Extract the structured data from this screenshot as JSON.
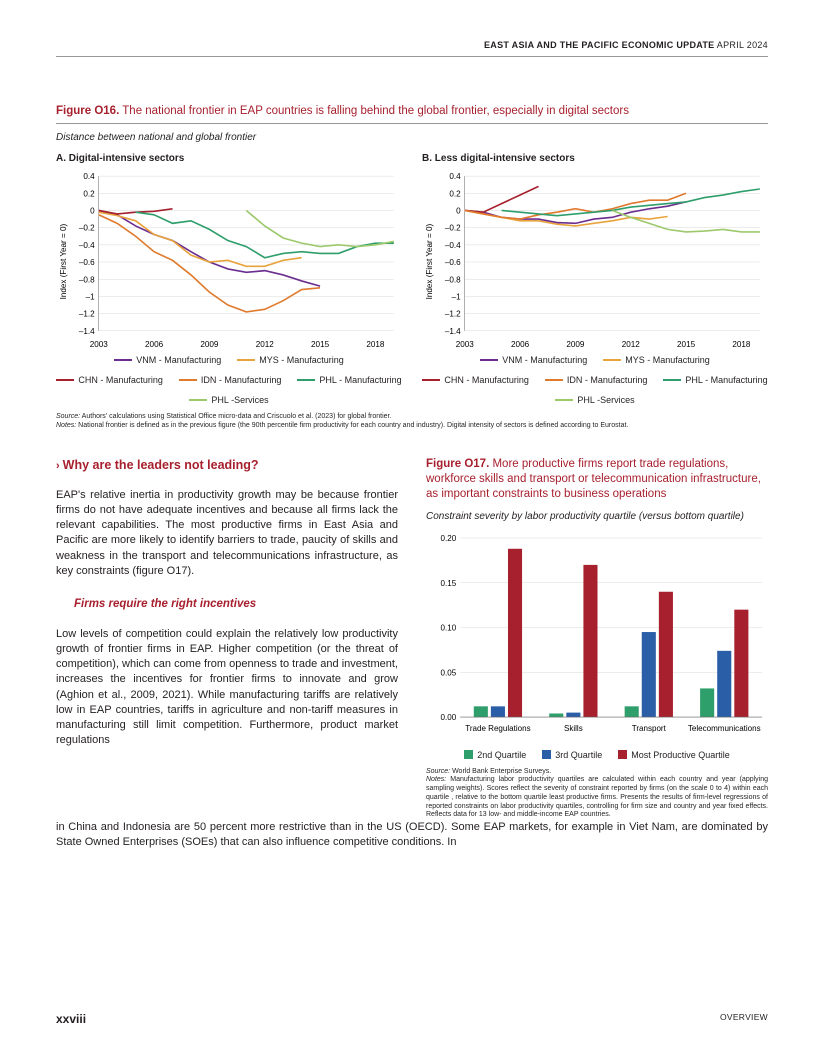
{
  "header": {
    "bold": "EAST ASIA AND THE PACIFIC ECONOMIC UPDATE",
    "light": " APRIL 2024"
  },
  "fig16": {
    "num": "Figure O16.",
    "title": " The national frontier in EAP countries is falling behind the global frontier, especially in digital sectors",
    "subtitle": "Distance between national and global frontier",
    "panelA_label": "A. Digital-intensive sectors",
    "panelB_label": "B. Less digital-intensive sectors",
    "ylabel": "Index (First Year = 0)",
    "yticks": [
      0.4,
      0.2,
      0,
      -0.2,
      -0.4,
      -0.6,
      -0.8,
      -1,
      -1.2,
      -1.4
    ],
    "xticks": [
      2003,
      2006,
      2009,
      2012,
      2015,
      2018
    ],
    "xlim": [
      2003,
      2019
    ],
    "ylim": [
      -1.4,
      0.4
    ],
    "colors": {
      "VNM": "#6b2e8f",
      "MYS": "#e8a33d",
      "CHN": "#a7202e",
      "IDN": "#e07b2e",
      "PHL_M": "#2e9e6b",
      "PHL_S": "#9cc96b"
    },
    "panelA_series": {
      "VNM": [
        [
          2003,
          0
        ],
        [
          2004,
          -0.05
        ],
        [
          2005,
          -0.18
        ],
        [
          2006,
          -0.28
        ],
        [
          2007,
          -0.35
        ],
        [
          2008,
          -0.48
        ],
        [
          2009,
          -0.6
        ],
        [
          2010,
          -0.68
        ],
        [
          2011,
          -0.72
        ],
        [
          2012,
          -0.7
        ],
        [
          2013,
          -0.75
        ],
        [
          2014,
          -0.82
        ],
        [
          2015,
          -0.88
        ]
      ],
      "MYS": [
        [
          2003,
          -0.02
        ],
        [
          2004,
          -0.06
        ],
        [
          2005,
          -0.12
        ],
        [
          2006,
          -0.28
        ],
        [
          2007,
          -0.35
        ],
        [
          2008,
          -0.52
        ],
        [
          2009,
          -0.6
        ],
        [
          2010,
          -0.58
        ],
        [
          2011,
          -0.65
        ],
        [
          2012,
          -0.65
        ],
        [
          2013,
          -0.58
        ],
        [
          2014,
          -0.55
        ]
      ],
      "CHN": [
        [
          2003,
          0
        ],
        [
          2004,
          -0.04
        ],
        [
          2005,
          -0.02
        ],
        [
          2006,
          -0.01
        ],
        [
          2007,
          0.02
        ]
      ],
      "IDN": [
        [
          2003,
          -0.05
        ],
        [
          2004,
          -0.15
        ],
        [
          2005,
          -0.3
        ],
        [
          2006,
          -0.48
        ],
        [
          2007,
          -0.58
        ],
        [
          2008,
          -0.75
        ],
        [
          2009,
          -0.95
        ],
        [
          2010,
          -1.1
        ],
        [
          2011,
          -1.18
        ],
        [
          2012,
          -1.15
        ],
        [
          2013,
          -1.05
        ],
        [
          2014,
          -0.92
        ],
        [
          2015,
          -0.9
        ]
      ],
      "PHL_M": [
        [
          2005,
          -0.02
        ],
        [
          2006,
          -0.05
        ],
        [
          2007,
          -0.15
        ],
        [
          2008,
          -0.12
        ],
        [
          2009,
          -0.22
        ],
        [
          2010,
          -0.35
        ],
        [
          2011,
          -0.42
        ],
        [
          2012,
          -0.55
        ],
        [
          2013,
          -0.5
        ],
        [
          2014,
          -0.48
        ],
        [
          2015,
          -0.5
        ],
        [
          2016,
          -0.5
        ],
        [
          2017,
          -0.42
        ],
        [
          2018,
          -0.38
        ],
        [
          2019,
          -0.38
        ]
      ],
      "PHL_S": [
        [
          2011,
          0
        ],
        [
          2012,
          -0.18
        ],
        [
          2013,
          -0.32
        ],
        [
          2014,
          -0.38
        ],
        [
          2015,
          -0.42
        ],
        [
          2016,
          -0.4
        ],
        [
          2017,
          -0.42
        ],
        [
          2018,
          -0.4
        ],
        [
          2019,
          -0.36
        ]
      ]
    },
    "panelB_series": {
      "VNM": [
        [
          2003,
          0
        ],
        [
          2004,
          -0.02
        ],
        [
          2005,
          -0.08
        ],
        [
          2006,
          -0.1
        ],
        [
          2007,
          -0.1
        ],
        [
          2008,
          -0.14
        ],
        [
          2009,
          -0.15
        ],
        [
          2010,
          -0.1
        ],
        [
          2011,
          -0.08
        ],
        [
          2012,
          -0.02
        ],
        [
          2013,
          0.02
        ],
        [
          2014,
          0.05
        ],
        [
          2015,
          0.1
        ]
      ],
      "MYS": [
        [
          2003,
          0
        ],
        [
          2004,
          -0.04
        ],
        [
          2005,
          -0.08
        ],
        [
          2006,
          -0.12
        ],
        [
          2007,
          -0.12
        ],
        [
          2008,
          -0.16
        ],
        [
          2009,
          -0.18
        ],
        [
          2010,
          -0.15
        ],
        [
          2011,
          -0.12
        ],
        [
          2012,
          -0.08
        ],
        [
          2013,
          -0.1
        ],
        [
          2014,
          -0.07
        ]
      ],
      "CHN": [
        [
          2003,
          0
        ],
        [
          2004,
          -0.02
        ],
        [
          2005,
          0.08
        ],
        [
          2006,
          0.18
        ],
        [
          2007,
          0.28
        ]
      ],
      "IDN": [
        [
          2003,
          0
        ],
        [
          2004,
          -0.04
        ],
        [
          2005,
          -0.08
        ],
        [
          2006,
          -0.1
        ],
        [
          2007,
          -0.05
        ],
        [
          2008,
          -0.02
        ],
        [
          2009,
          0.02
        ],
        [
          2010,
          -0.02
        ],
        [
          2011,
          0.02
        ],
        [
          2012,
          0.08
        ],
        [
          2013,
          0.12
        ],
        [
          2014,
          0.12
        ],
        [
          2015,
          0.2
        ]
      ],
      "PHL_M": [
        [
          2005,
          0
        ],
        [
          2006,
          -0.02
        ],
        [
          2007,
          -0.04
        ],
        [
          2008,
          -0.06
        ],
        [
          2009,
          -0.04
        ],
        [
          2010,
          -0.02
        ],
        [
          2011,
          0
        ],
        [
          2012,
          0.04
        ],
        [
          2013,
          0.06
        ],
        [
          2014,
          0.08
        ],
        [
          2015,
          0.1
        ],
        [
          2016,
          0.15
        ],
        [
          2017,
          0.18
        ],
        [
          2018,
          0.22
        ],
        [
          2019,
          0.25
        ]
      ],
      "PHL_S": [
        [
          2011,
          0
        ],
        [
          2012,
          -0.08
        ],
        [
          2013,
          -0.15
        ],
        [
          2014,
          -0.22
        ],
        [
          2015,
          -0.25
        ],
        [
          2016,
          -0.24
        ],
        [
          2017,
          -0.22
        ],
        [
          2018,
          -0.25
        ],
        [
          2019,
          -0.25
        ]
      ]
    },
    "legend": [
      {
        "k": "VNM",
        "t": "VNM - Manufacturing"
      },
      {
        "k": "MYS",
        "t": "MYS - Manufacturing"
      },
      {
        "k": "CHN",
        "t": "CHN - Manufacturing"
      },
      {
        "k": "IDN",
        "t": "IDN - Manufacturing"
      },
      {
        "k": "PHL_M",
        "t": "PHL - Manufacturing"
      },
      {
        "k": "PHL_S",
        "t": "PHL -Services"
      }
    ],
    "source_label": "Source:",
    "source": " Authors' calculations using Statistical Office micro-data and Criscuolo et al. (2023) for global frontier.",
    "notes_label": "Notes:",
    "notes": " National frontier is defined as in the previous figure (the 90th percentile firm productivity for each country and industry). Digital intensity of sectors is defined according to Eurostat."
  },
  "section": {
    "head": "Why are the leaders not leading?",
    "p1": "EAP's relative inertia in productivity growth may be because frontier firms do not have adequate incentives and because all firms lack the relevant capabilities. The most productive firms in East Asia and Pacific are more likely to identify barriers to trade, paucity of skills and weakness in the transport and telecommunications infrastructure, as key constraints (figure O17).",
    "sub": "Firms require the right incentives",
    "p2": "Low levels of competition could explain the relatively low productivity growth of frontier firms in EAP. Higher competition (or the threat of competition), which can come from openness to trade and investment, increases the incentives for frontier firms to innovate and grow (Aghion et al., 2009, 2021). While manufacturing tariffs are relatively low in EAP countries, tariffs in agriculture and non-tariff measures in manufacturing still limit competition. Furthermore, product market regulations",
    "p3": "in China and Indonesia are 50 percent more restrictive than in the US (OECD). Some EAP markets, for example in Viet Nam, are dominated by State Owned Enterprises (SOEs) that can also influence competitive conditions. In"
  },
  "fig17": {
    "num": "Figure O17.",
    "title": " More productive firms report trade regulations, workforce skills and transport or telecommunication infrastructure, as important constraints to business operations",
    "subtitle": "Constraint severity by labor productivity quartile (versus bottom quartile)",
    "categories": [
      "Trade Regulations",
      "Skills",
      "Transport",
      "Telecommunications"
    ],
    "series": [
      {
        "name": "2nd Quartile",
        "color": "#2e9e6b",
        "vals": [
          0.012,
          0.004,
          0.012,
          0.032
        ]
      },
      {
        "name": "3rd Quartile",
        "color": "#2a5fa8",
        "vals": [
          0.012,
          0.005,
          0.095,
          0.074
        ]
      },
      {
        "name": "Most Productive Quartile",
        "color": "#a7202e",
        "vals": [
          0.188,
          0.17,
          0.14,
          0.12
        ]
      }
    ],
    "yticks": [
      0.0,
      0.05,
      0.1,
      0.15,
      0.2
    ],
    "ylim": [
      0,
      0.2
    ],
    "source_label": "Source:",
    "source": " World Bank Enterprise Surveys.",
    "notes_label": "Notes:",
    "notes": " Manufacturing labor productivity quartiles are calculated within each country and year (applying sampling weights). Scores reflect the severity of constraint reported by firms (on the scale 0 to 4) within each quartile , relative to the bottom quartile least productive firms. Presents the results of firm-level regressions of reported constraints on labor productivity quartiles, controlling for firm size and country and year fixed effects. Reflects data for 13 low- and middle-income EAP countries."
  },
  "footer": {
    "page": "xxviii",
    "section": "OVERVIEW"
  }
}
